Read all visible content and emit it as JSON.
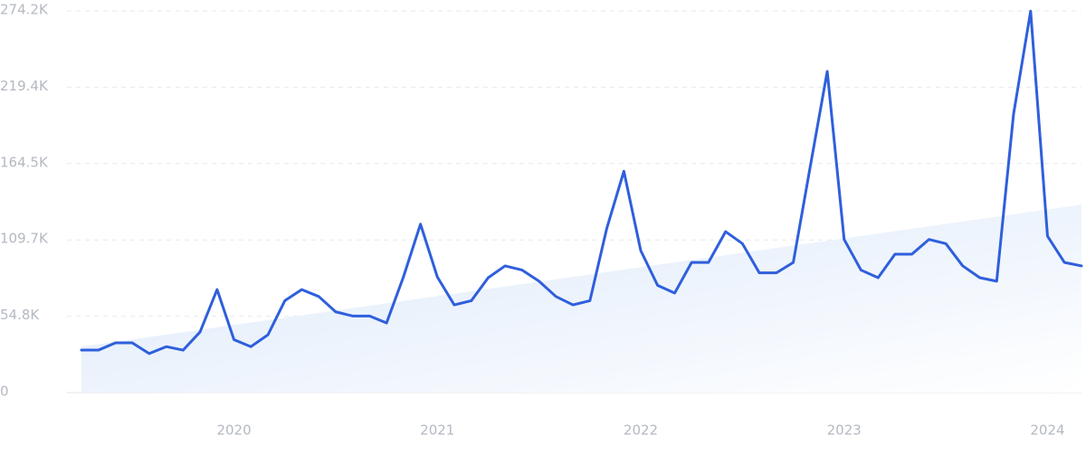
{
  "chart_data": {
    "type": "line",
    "x": [
      2019.25,
      2019.333,
      2019.417,
      2019.5,
      2019.583,
      2019.667,
      2019.75,
      2019.833,
      2019.917,
      2020.0,
      2020.083,
      2020.167,
      2020.25,
      2020.333,
      2020.417,
      2020.5,
      2020.583,
      2020.667,
      2020.75,
      2020.833,
      2020.917,
      2021.0,
      2021.083,
      2021.167,
      2021.25,
      2021.333,
      2021.417,
      2021.5,
      2021.583,
      2021.667,
      2021.75,
      2021.833,
      2021.917,
      2022.0,
      2022.083,
      2022.167,
      2022.25,
      2022.333,
      2022.417,
      2022.5,
      2022.583,
      2022.667,
      2022.75,
      2022.833,
      2022.917,
      2023.0,
      2023.083,
      2023.167,
      2023.25,
      2023.333,
      2023.417,
      2023.5,
      2023.583,
      2023.667,
      2023.75,
      2023.833,
      2023.917,
      2024.0,
      2024.083,
      2024.167
    ],
    "series": [
      {
        "color": "#2f5fdc",
        "values": [
          30500,
          30500,
          35700,
          35700,
          28000,
          33000,
          30500,
          43500,
          74000,
          38000,
          33000,
          41500,
          66000,
          74000,
          69000,
          58000,
          55000,
          55000,
          50000,
          83000,
          121000,
          83000,
          63000,
          66000,
          82500,
          91000,
          88000,
          80000,
          69000,
          63000,
          66000,
          118000,
          159000,
          102000,
          77000,
          71500,
          93500,
          93500,
          115600,
          107000,
          86000,
          86000,
          93500,
          162000,
          230700,
          110000,
          88000,
          82500,
          99400,
          99400,
          110000,
          107000,
          91000,
          82500,
          80000,
          200000,
          274000,
          112400,
          93500,
          91000
        ]
      }
    ],
    "trend": {
      "x": [
        2019.25,
        2024.167
      ],
      "values": [
        33000,
        135000
      ],
      "color": "#dbe8fa"
    },
    "xlim": [
      2019.25,
      2024.167
    ],
    "xticks": [
      2020,
      2021,
      2022,
      2023,
      2024
    ],
    "ylim": [
      0,
      274200
    ],
    "yticks": [
      0,
      {
        "value": 54840,
        "label": "54.8K"
      },
      {
        "value": 109680,
        "label": "109.7K"
      },
      {
        "value": 164520,
        "label": "164.5K"
      },
      {
        "value": 219360,
        "label": "219.4K"
      },
      {
        "value": 274200,
        "label": "274.2K"
      }
    ],
    "grid": true
  }
}
